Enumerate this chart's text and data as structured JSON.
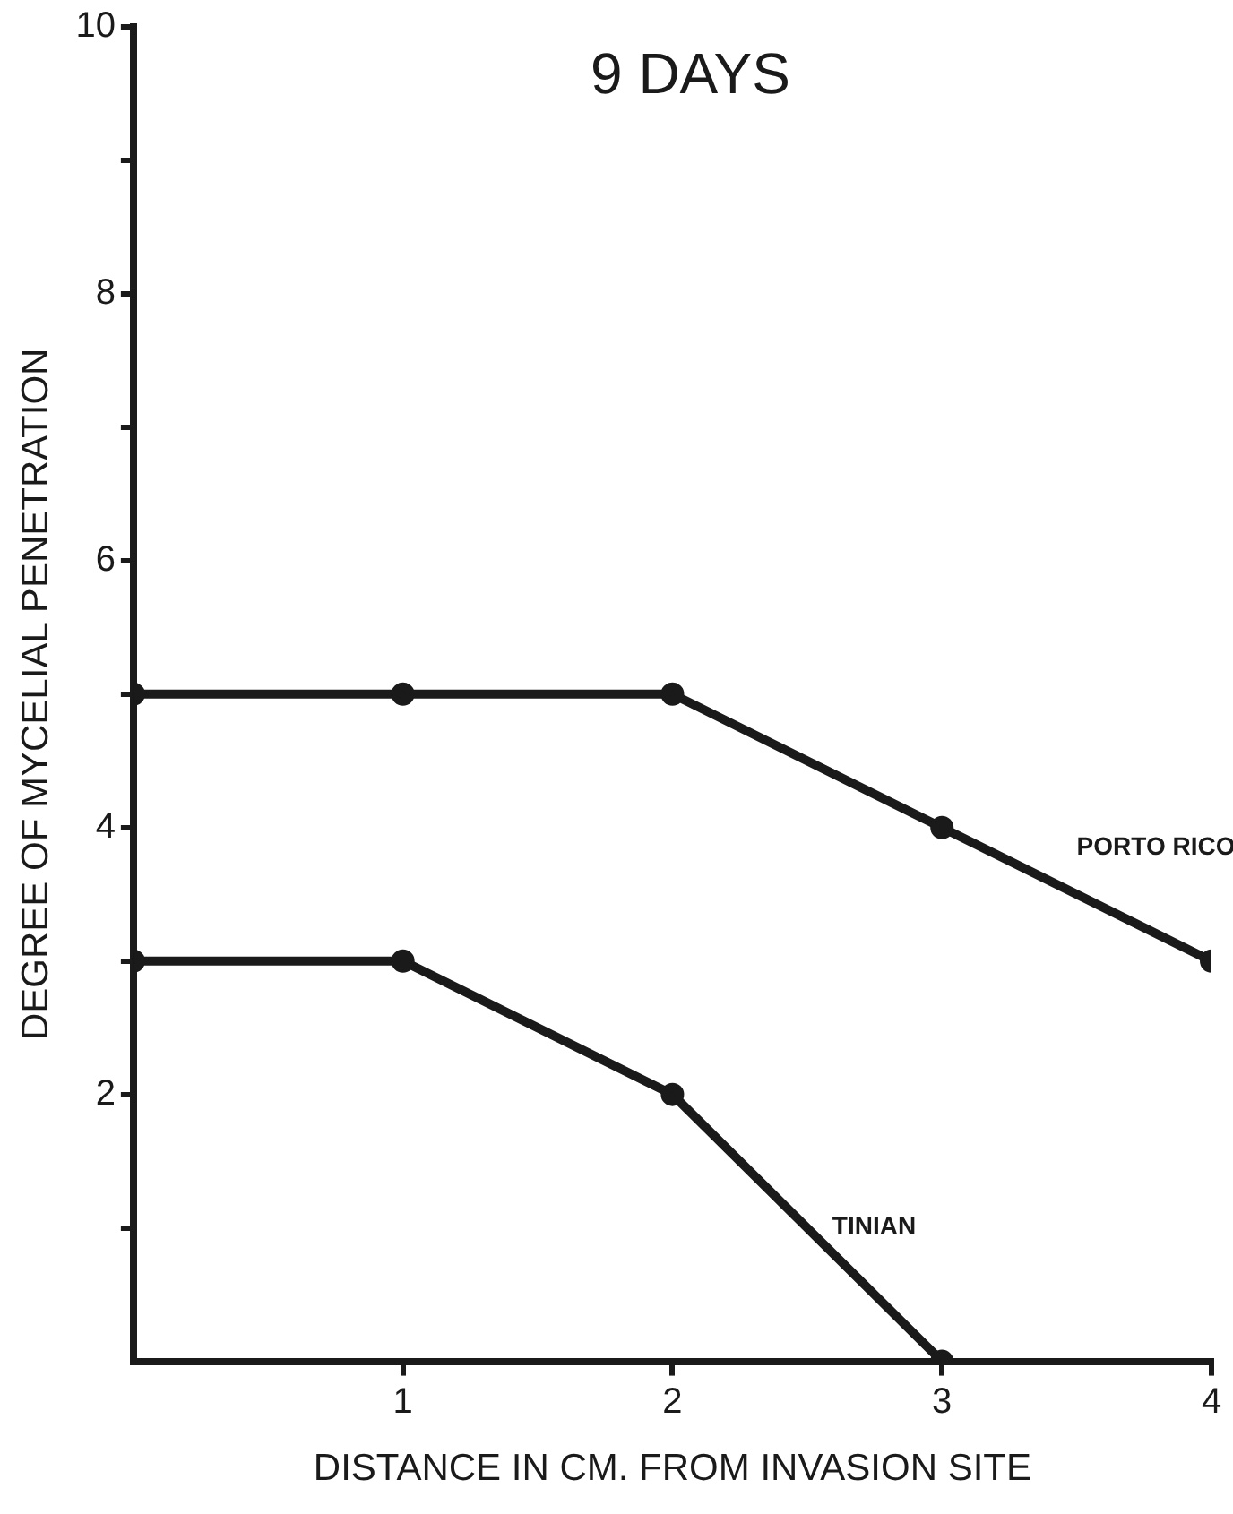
{
  "chart_data": {
    "type": "line",
    "title": "9 DAYS",
    "xlabel": "DISTANCE IN CM. FROM INVASION SITE",
    "ylabel": "DEGREE OF MYCELIAL PENETRATION",
    "x": [
      0,
      1,
      2,
      3,
      4
    ],
    "series": [
      {
        "name": "PORTO RICO",
        "color": "#1a1a1a",
        "values": [
          5,
          5,
          5,
          4,
          3
        ]
      },
      {
        "name": "TINIAN",
        "color": "#1a1a1a",
        "x": [
          0,
          1,
          2,
          3
        ],
        "values": [
          3,
          3,
          2,
          0
        ]
      }
    ],
    "xlim": [
      0,
      4
    ],
    "xticks": [
      1,
      2,
      3,
      4
    ],
    "ylim": [
      0,
      10
    ],
    "yticks": [
      {
        "value": 1,
        "label": null
      },
      2,
      {
        "value": 3,
        "label": null
      },
      4,
      {
        "value": 5,
        "label": null
      },
      6,
      {
        "value": 7,
        "label": null
      },
      8,
      {
        "value": 9,
        "label": null
      },
      10
    ],
    "grid": false,
    "legend": false,
    "marker": "circle",
    "line_style": "solid"
  }
}
